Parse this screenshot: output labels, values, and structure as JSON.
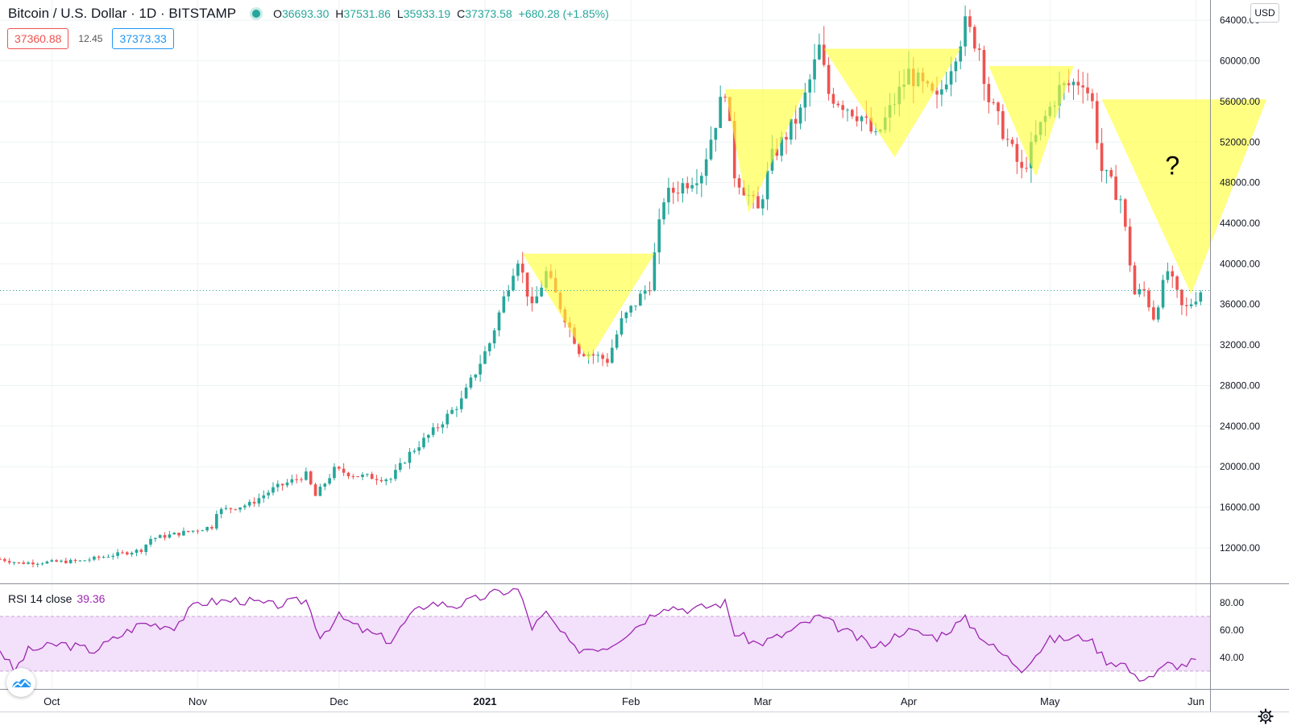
{
  "header": {
    "symbol": "Bitcoin / U.S. Dollar",
    "interval": "1D",
    "exchange": "BITSTAMP",
    "open_label": "O",
    "open": "36693.30",
    "high_label": "H",
    "high": "37531.86",
    "low_label": "L",
    "low": "35933.19",
    "close_label": "C",
    "close": "37373.58",
    "change": "+680.28 (+1.85%)"
  },
  "quote": {
    "bid": "37360.88",
    "spread": "12.45",
    "ask": "37373.33"
  },
  "currency_button": "USD",
  "rsi_legend": {
    "label": "RSI 14 close",
    "value": "39.36"
  },
  "colors": {
    "up": "#26a69a",
    "down": "#ef5350",
    "rsi": "#9c27b0",
    "triangle": "#ffff33"
  },
  "icons": [
    "status-dot-icon",
    "tradingview-logo-icon",
    "gear-icon"
  ],
  "chart_data": [
    {
      "type": "candlestick",
      "title": "Bitcoin / U.S. Dollar · 1D · BITSTAMP",
      "x_start": "2020-09-20",
      "x_end": "2021-06-04",
      "y_axis_side": "right",
      "ylim": [
        8500,
        66000
      ],
      "y_ticks": [
        "12000.00",
        "16000.00",
        "20000.00",
        "24000.00",
        "28000.00",
        "32000.00",
        "36000.00",
        "40000.00",
        "44000.00",
        "48000.00",
        "52000.00",
        "56000.00",
        "60000.00",
        "64000.00"
      ],
      "x_ticks": [
        {
          "label": "Oct",
          "date": "2020-10-01",
          "bold": false
        },
        {
          "label": "Nov",
          "date": "2020-11-01",
          "bold": false
        },
        {
          "label": "Dec",
          "date": "2020-12-01",
          "bold": false
        },
        {
          "label": "2021",
          "date": "2021-01-01",
          "bold": true
        },
        {
          "label": "Feb",
          "date": "2021-02-01",
          "bold": false
        },
        {
          "label": "Mar",
          "date": "2021-03-01",
          "bold": false
        },
        {
          "label": "Apr",
          "date": "2021-04-01",
          "bold": false
        },
        {
          "label": "May",
          "date": "2021-05-01",
          "bold": false
        },
        {
          "label": "Jun",
          "date": "2021-06-01",
          "bold": false
        }
      ],
      "last_price": 37373,
      "price_path": [
        [
          "2020-09-20",
          10900
        ],
        [
          "2020-09-24",
          10500
        ],
        [
          "2020-10-07",
          10700
        ],
        [
          "2020-10-14",
          11300
        ],
        [
          "2020-10-20",
          11800
        ],
        [
          "2020-10-22",
          12900
        ],
        [
          "2020-10-30",
          13600
        ],
        [
          "2020-11-04",
          14100
        ],
        [
          "2020-11-05",
          15600
        ],
        [
          "2020-11-12",
          16300
        ],
        [
          "2020-11-17",
          17800
        ],
        [
          "2020-11-24",
          19200
        ],
        [
          "2020-11-26",
          17100
        ],
        [
          "2020-11-30",
          19700
        ],
        [
          "2020-12-05",
          19100
        ],
        [
          "2020-12-12",
          18800
        ],
        [
          "2020-12-16",
          21300
        ],
        [
          "2020-12-21",
          23500
        ],
        [
          "2020-12-27",
          26500
        ],
        [
          "2021-01-02",
          32200
        ],
        [
          "2021-01-07",
          39500
        ],
        [
          "2021-01-08",
          40600
        ],
        [
          "2021-01-11",
          35500
        ],
        [
          "2021-01-14",
          39100
        ],
        [
          "2021-01-21",
          31500
        ],
        [
          "2021-01-27",
          30500
        ],
        [
          "2021-01-30",
          34300
        ],
        [
          "2021-02-05",
          38000
        ],
        [
          "2021-02-08",
          46500
        ],
        [
          "2021-02-16",
          49100
        ],
        [
          "2021-02-21",
          57400
        ],
        [
          "2021-02-23",
          48900
        ],
        [
          "2021-02-28",
          45200
        ],
        [
          "2021-03-03",
          50500
        ],
        [
          "2021-03-09",
          54900
        ],
        [
          "2021-03-13",
          61200
        ],
        [
          "2021-03-15",
          56800
        ],
        [
          "2021-03-22",
          54500
        ],
        [
          "2021-03-25",
          52300
        ],
        [
          "2021-04-01",
          58800
        ],
        [
          "2021-04-07",
          56000
        ],
        [
          "2021-04-13",
          63500
        ],
        [
          "2021-04-16",
          61300
        ],
        [
          "2021-04-18",
          56200
        ],
        [
          "2021-04-25",
          49000
        ],
        [
          "2021-04-29",
          53500
        ],
        [
          "2021-05-03",
          57200
        ],
        [
          "2021-05-08",
          58200
        ],
        [
          "2021-05-10",
          55800
        ],
        [
          "2021-05-12",
          49200
        ],
        [
          "2021-05-16",
          46400
        ],
        [
          "2021-05-19",
          37000
        ],
        [
          "2021-05-21",
          37300
        ],
        [
          "2021-05-23",
          34800
        ],
        [
          "2021-05-26",
          39300
        ],
        [
          "2021-05-29",
          35700
        ],
        [
          "2021-05-30",
          35600
        ],
        [
          "2021-06-02",
          37373
        ]
      ],
      "annotations": [
        {
          "type": "triangle",
          "top_left": [
            "2021-01-09",
            41000
          ],
          "top_right": [
            "2021-02-06",
            41000
          ],
          "apex": [
            "2021-01-23",
            30500
          ]
        },
        {
          "type": "triangle",
          "top_left": [
            "2021-02-21",
            57200
          ],
          "top_right": [
            "2021-03-10",
            57200
          ],
          "apex": [
            "2021-02-26",
            45000
          ]
        },
        {
          "type": "triangle",
          "top_left": [
            "2021-03-14",
            61200
          ],
          "top_right": [
            "2021-04-12",
            61200
          ],
          "apex": [
            "2021-03-29",
            50500
          ]
        },
        {
          "type": "triangle",
          "top_left": [
            "2021-04-18",
            59500
          ],
          "top_right": [
            "2021-05-06",
            59500
          ],
          "apex": [
            "2021-04-28",
            48600
          ]
        },
        {
          "type": "triangle",
          "top_left": [
            "2021-05-12",
            56200
          ],
          "top_right": [
            "2021-06-16",
            56200
          ],
          "apex": [
            "2021-05-31",
            37000
          ]
        },
        {
          "type": "text",
          "text": "?",
          "at": [
            "2021-05-27",
            48800
          ]
        }
      ]
    },
    {
      "type": "line",
      "title": "RSI 14 close",
      "series": [
        {
          "name": "RSI 14 close",
          "color": "#9c27b0"
        }
      ],
      "ylim": [
        17,
        93
      ],
      "band": [
        30,
        70
      ],
      "y_ticks": [
        "40.00",
        "60.00",
        "80.00"
      ],
      "rsi_path": [
        [
          "2020-09-20",
          46
        ],
        [
          "2020-09-23",
          30
        ],
        [
          "2020-09-26",
          45
        ],
        [
          "2020-10-03",
          50
        ],
        [
          "2020-10-10",
          45
        ],
        [
          "2020-10-15",
          55
        ],
        [
          "2020-10-20",
          65
        ],
        [
          "2020-10-27",
          63
        ],
        [
          "2020-11-01",
          80
        ],
        [
          "2020-11-10",
          82
        ],
        [
          "2020-11-17",
          78
        ],
        [
          "2020-11-24",
          82
        ],
        [
          "2020-11-27",
          56
        ],
        [
          "2020-12-01",
          70
        ],
        [
          "2020-12-06",
          60
        ],
        [
          "2020-12-12",
          52
        ],
        [
          "2020-12-16",
          70
        ],
        [
          "2020-12-20",
          80
        ],
        [
          "2020-12-26",
          78
        ],
        [
          "2021-01-03",
          87
        ],
        [
          "2021-01-08",
          90
        ],
        [
          "2021-01-11",
          62
        ],
        [
          "2021-01-14",
          72
        ],
        [
          "2021-01-20",
          46
        ],
        [
          "2021-01-27",
          48
        ],
        [
          "2021-02-01",
          60
        ],
        [
          "2021-02-08",
          78
        ],
        [
          "2021-02-14",
          75
        ],
        [
          "2021-02-21",
          80
        ],
        [
          "2021-02-23",
          58
        ],
        [
          "2021-02-28",
          50
        ],
        [
          "2021-03-05",
          56
        ],
        [
          "2021-03-13",
          70
        ],
        [
          "2021-03-17",
          62
        ],
        [
          "2021-03-25",
          47
        ],
        [
          "2021-03-31",
          60
        ],
        [
          "2021-04-07",
          55
        ],
        [
          "2021-04-13",
          68
        ],
        [
          "2021-04-18",
          50
        ],
        [
          "2021-04-25",
          32
        ],
        [
          "2021-05-01",
          53
        ],
        [
          "2021-05-09",
          55
        ],
        [
          "2021-05-13",
          38
        ],
        [
          "2021-05-17",
          35
        ],
        [
          "2021-05-19",
          25
        ],
        [
          "2021-05-23",
          27
        ],
        [
          "2021-05-26",
          35
        ],
        [
          "2021-05-29",
          34
        ],
        [
          "2021-06-01",
          38
        ]
      ]
    }
  ]
}
